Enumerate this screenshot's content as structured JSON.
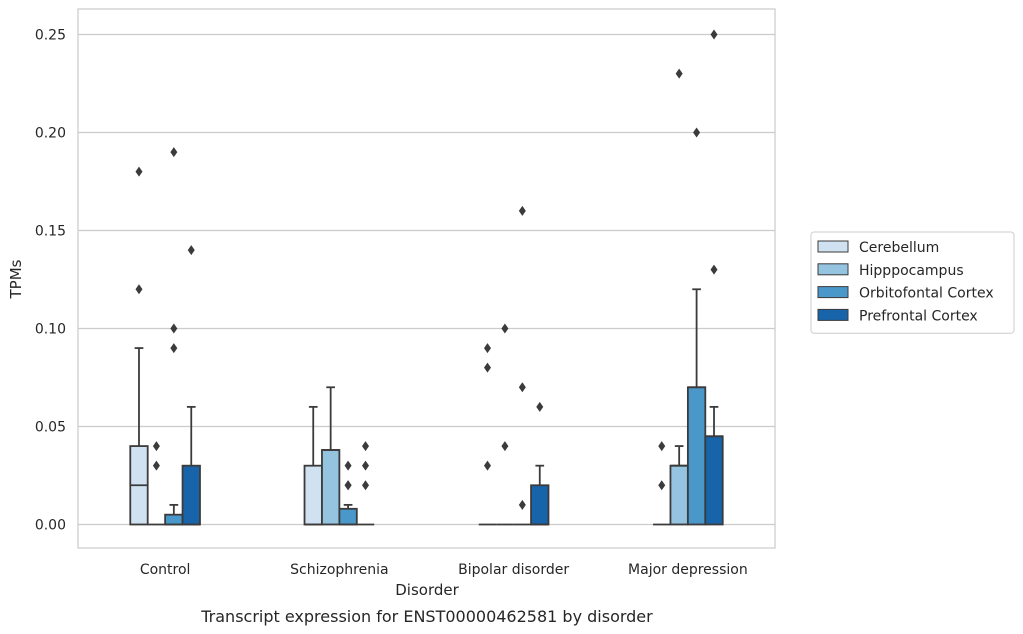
{
  "chart_data": {
    "type": "box",
    "xlabel": "Disorder",
    "ylabel": "TPMs",
    "caption": "Transcript expression for ENST00000462581 by disorder",
    "ylim": [
      -0.012,
      0.263
    ],
    "yticks": [
      "0.00",
      "0.05",
      "0.10",
      "0.15",
      "0.20",
      "0.25"
    ],
    "ytick_values": [
      0,
      0.05,
      0.1,
      0.15,
      0.2,
      0.25
    ],
    "grid": "horizontal",
    "legend_position": "right",
    "categories": [
      "Control",
      "Schizophrenia",
      "Bipolar disorder",
      "Major depression"
    ],
    "series": [
      {
        "name": "Cerebellum",
        "color": "#d0e1f2",
        "boxes": [
          {
            "q1": 0,
            "median": 0.02,
            "q3": 0.04,
            "whisker_low": 0,
            "whisker_high": 0.09,
            "outliers": [
              0.12,
              0.18
            ]
          },
          {
            "q1": 0,
            "median": 0,
            "q3": 0.03,
            "whisker_low": 0,
            "whisker_high": 0.06,
            "outliers": []
          },
          {
            "q1": 0,
            "median": 0,
            "q3": 0,
            "whisker_low": 0,
            "whisker_high": 0,
            "outliers": [
              0.03,
              0.08,
              0.09
            ]
          },
          {
            "q1": 0,
            "median": 0,
            "q3": 0,
            "whisker_low": 0,
            "whisker_high": 0,
            "outliers": [
              0.02,
              0.04
            ]
          }
        ]
      },
      {
        "name": "Hipppocampus",
        "color": "#94c4df",
        "boxes": [
          {
            "q1": 0,
            "median": 0,
            "q3": 0,
            "whisker_low": 0,
            "whisker_high": 0,
            "outliers": [
              0.03,
              0.04
            ]
          },
          {
            "q1": 0,
            "median": 0.038,
            "q3": 0.038,
            "whisker_low": 0,
            "whisker_high": 0.07,
            "outliers": []
          },
          {
            "q1": 0,
            "median": 0,
            "q3": 0,
            "whisker_low": 0,
            "whisker_high": 0,
            "outliers": [
              0.04,
              0.1
            ]
          },
          {
            "q1": 0,
            "median": 0.03,
            "q3": 0.03,
            "whisker_low": 0,
            "whisker_high": 0.04,
            "outliers": [
              0.23
            ]
          }
        ]
      },
      {
        "name": "Orbitofontal Cortex",
        "color": "#4a98c9",
        "boxes": [
          {
            "q1": 0,
            "median": 0,
            "q3": 0.005,
            "whisker_low": 0,
            "whisker_high": 0.01,
            "outliers": [
              0.09,
              0.1,
              0.19
            ]
          },
          {
            "q1": 0,
            "median": 0,
            "q3": 0.008,
            "whisker_low": 0,
            "whisker_high": 0.01,
            "outliers": [
              0.02,
              0.02,
              0.03
            ]
          },
          {
            "q1": 0,
            "median": 0,
            "q3": 0,
            "whisker_low": 0,
            "whisker_high": 0,
            "outliers": [
              0.01,
              0.07,
              0.16
            ]
          },
          {
            "q1": 0,
            "median": 0.07,
            "q3": 0.07,
            "whisker_low": 0,
            "whisker_high": 0.12,
            "outliers": [
              0.2
            ]
          }
        ]
      },
      {
        "name": "Prefrontal Cortex",
        "color": "#1764ab",
        "boxes": [
          {
            "q1": 0,
            "median": 0,
            "q3": 0.03,
            "whisker_low": 0,
            "whisker_high": 0.06,
            "outliers": [
              0.14
            ]
          },
          {
            "q1": 0,
            "median": 0,
            "q3": 0,
            "whisker_low": 0,
            "whisker_high": 0,
            "outliers": [
              0.02,
              0.03,
              0.04
            ]
          },
          {
            "q1": 0,
            "median": 0,
            "q3": 0.02,
            "whisker_low": 0,
            "whisker_high": 0.03,
            "outliers": [
              0.06
            ]
          },
          {
            "q1": 0,
            "median": 0.045,
            "q3": 0.045,
            "whisker_low": 0,
            "whisker_high": 0.06,
            "outliers": [
              0.13,
              0.25
            ]
          }
        ]
      }
    ]
  }
}
